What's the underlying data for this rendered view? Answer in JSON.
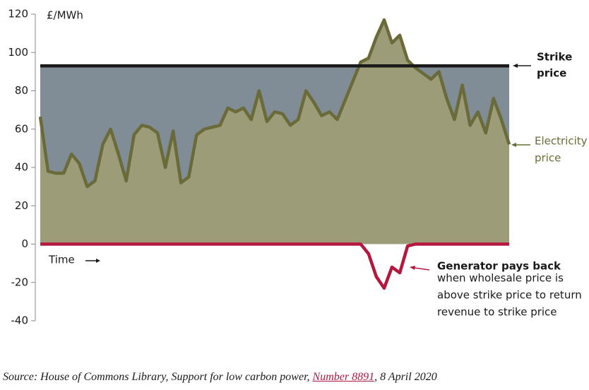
{
  "chart_data": {
    "type": "area",
    "y_axis_label": "£/MWh",
    "x_axis_label": "Time",
    "categories": [
      null,
      null,
      null,
      null,
      null,
      null,
      null,
      null,
      null,
      null,
      null,
      null,
      null,
      null,
      null,
      null,
      null,
      null,
      null,
      null,
      null,
      null,
      null,
      null,
      null,
      null,
      null,
      null,
      null,
      null,
      null,
      null,
      null,
      null,
      null,
      null,
      null,
      null,
      null,
      null,
      null,
      null,
      null,
      null,
      null,
      null,
      null,
      null,
      null,
      null,
      null,
      null,
      null,
      null,
      null,
      null,
      null,
      null,
      null,
      null,
      null
    ],
    "series": [
      {
        "color": "#6b6b3a",
        "fill": "#9c9c79",
        "values": [
          66.5,
          38,
          37,
          37,
          47,
          42,
          30,
          33,
          52,
          60,
          47,
          33,
          57,
          62,
          61,
          58,
          40,
          59,
          32,
          35,
          57,
          60,
          61,
          62,
          71,
          69,
          71,
          65,
          80,
          64,
          69,
          68,
          62,
          65,
          80,
          74,
          67,
          69,
          65,
          75,
          85,
          95,
          97,
          108,
          117,
          105,
          109,
          96,
          92,
          89,
          86,
          90,
          76,
          65,
          83,
          62,
          69,
          58,
          76,
          65,
          52
        ]
      },
      {
        "color": "#b5173f",
        "values": [
          0,
          0,
          0,
          0,
          0,
          0,
          0,
          0,
          0,
          0,
          0,
          0,
          0,
          0,
          0,
          0,
          0,
          0,
          0,
          0,
          0,
          0,
          0,
          0,
          0,
          0,
          0,
          0,
          0,
          0,
          0,
          0,
          0,
          0,
          0,
          0,
          0,
          0,
          0,
          0,
          0,
          0,
          -5,
          -17,
          -23,
          -12,
          -15,
          -1,
          0,
          0,
          0,
          0,
          0,
          0,
          0,
          0,
          0,
          0,
          0,
          0,
          0
        ]
      }
    ],
    "strike_price": 93,
    "strike_color": "#1a1a1a",
    "strike_fill": "#808c96",
    "annotations": {
      "strike": [
        "Strike",
        "price"
      ],
      "electricity": [
        "Electricity",
        "price"
      ],
      "generator": [
        "Generator pays back",
        "when wholesale price is",
        "above strike price to return",
        "revenue to strike price"
      ]
    },
    "ylim": [
      -40,
      120
    ],
    "yticks": [
      -40,
      -20,
      0,
      20,
      40,
      60,
      80,
      100,
      120
    ]
  },
  "source": {
    "before": "Source: House of Commons Library, Support for low carbon power, ",
    "link": "Number 8891",
    "after": ", 8 April 2020"
  }
}
